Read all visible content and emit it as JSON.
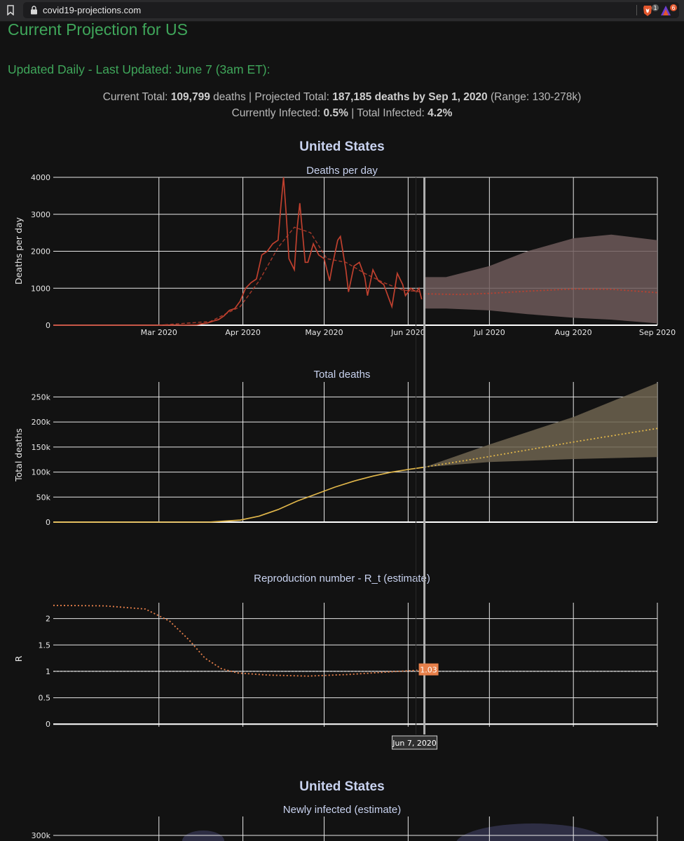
{
  "browser": {
    "url": "covid19-projections.com",
    "ext1_badge": "1",
    "ext2_badge": "6"
  },
  "page": {
    "title": "Current Projection for US",
    "updated": "Updated Daily - Last Updated: June 7 (3am ET):",
    "summary": {
      "current_total_label": "Current Total:",
      "current_total_value": "109,799",
      "current_total_unit": "deaths",
      "projected_label": "Projected Total:",
      "projected_value": "187,185 deaths by Sep 1, 2020",
      "range": "(Range: 130-278k)",
      "currently_infected_label": "Currently Infected:",
      "currently_infected_value": "0.5%",
      "total_infected_label": "Total Infected:",
      "total_infected_value": "4.2%",
      "sep": "|"
    },
    "figure_title": "United States",
    "figure_title_2": "United States",
    "current_date_marker": "2020-06-07",
    "hover_date_label": "Jun 7, 2020",
    "hover_value_label": "1.03"
  },
  "chart_data": [
    {
      "type": "line",
      "title": "Deaths per day",
      "xlabel": "",
      "ylabel": "Deaths per day",
      "x_ticks": [
        "Mar 2020",
        "Apr 2020",
        "May 2020",
        "Jun 2020",
        "Jul 2020",
        "Aug 2020",
        "Sep 2020"
      ],
      "ylim": [
        0,
        4000
      ],
      "y_ticks": [
        "0",
        "1000",
        "2000",
        "3000",
        "4000"
      ],
      "grid": true,
      "colors": {
        "actual": "#c0402e",
        "smoothed": "#c0402e",
        "band": "#6e5a5a",
        "projection": "#c0402e"
      },
      "series": [
        {
          "style": "solid",
          "x": [
            "2020-01-22",
            "2020-03-01",
            "2020-03-10",
            "2020-03-15",
            "2020-03-17",
            "2020-03-19",
            "2020-03-21",
            "2020-03-23",
            "2020-03-25",
            "2020-03-27",
            "2020-03-29",
            "2020-03-31",
            "2020-04-02",
            "2020-04-04",
            "2020-04-06",
            "2020-04-08",
            "2020-04-10",
            "2020-04-12",
            "2020-04-14",
            "2020-04-15",
            "2020-04-16",
            "2020-04-17",
            "2020-04-18",
            "2020-04-20",
            "2020-04-21",
            "2020-04-22",
            "2020-04-24",
            "2020-04-25",
            "2020-04-27",
            "2020-04-29",
            "2020-05-01",
            "2020-05-03",
            "2020-05-04",
            "2020-05-06",
            "2020-05-07",
            "2020-05-09",
            "2020-05-10",
            "2020-05-12",
            "2020-05-14",
            "2020-05-16",
            "2020-05-17",
            "2020-05-19",
            "2020-05-21",
            "2020-05-23",
            "2020-05-25",
            "2020-05-26",
            "2020-05-28",
            "2020-05-30",
            "2020-05-31",
            "2020-06-02",
            "2020-06-04",
            "2020-06-05",
            "2020-06-06"
          ],
          "values": [
            0,
            0,
            2,
            10,
            40,
            60,
            110,
            150,
            250,
            400,
            450,
            650,
            1000,
            1150,
            1250,
            1900,
            2000,
            2200,
            2300,
            3200,
            4000,
            3000,
            1800,
            1500,
            2600,
            3300,
            1700,
            1700,
            2200,
            1900,
            1800,
            1200,
            1600,
            2300,
            2400,
            1500,
            900,
            1600,
            1700,
            1300,
            800,
            1500,
            1200,
            1100,
            700,
            500,
            1400,
            1100,
            800,
            1000,
            900,
            1000,
            700
          ]
        },
        {
          "style": "dashed",
          "x": [
            "2020-03-01",
            "2020-03-20",
            "2020-03-31",
            "2020-04-07",
            "2020-04-14",
            "2020-04-20",
            "2020-04-26",
            "2020-05-02",
            "2020-05-09",
            "2020-05-16",
            "2020-05-23",
            "2020-05-30",
            "2020-06-06"
          ],
          "values": [
            0,
            100,
            500,
            1200,
            2100,
            2650,
            2500,
            1800,
            1700,
            1400,
            1150,
            950,
            900
          ]
        },
        {
          "style": "dotted",
          "x": [
            "2020-06-07",
            "2020-06-20",
            "2020-07-01",
            "2020-07-15",
            "2020-08-01",
            "2020-08-15",
            "2020-09-01"
          ],
          "values": [
            850,
            830,
            860,
            920,
            980,
            970,
            880
          ]
        }
      ],
      "band": {
        "x": [
          "2020-06-07",
          "2020-06-15",
          "2020-07-01",
          "2020-07-15",
          "2020-08-01",
          "2020-08-15",
          "2020-09-01"
        ],
        "upper": [
          1300,
          1300,
          1600,
          2000,
          2350,
          2450,
          2300
        ],
        "lower": [
          450,
          450,
          400,
          300,
          200,
          150,
          50
        ]
      }
    },
    {
      "type": "line",
      "title": "Total deaths",
      "xlabel": "",
      "ylabel": "Total deaths",
      "ylim": [
        0,
        280000
      ],
      "y_ticks": [
        "0",
        "50k",
        "100k",
        "150k",
        "200k",
        "250k"
      ],
      "grid": true,
      "colors": {
        "actual": "#e0b64a",
        "band": "#6e6450",
        "projection": "#e0b64a"
      },
      "series": [
        {
          "style": "solid",
          "x": [
            "2020-01-22",
            "2020-03-20",
            "2020-03-31",
            "2020-04-07",
            "2020-04-14",
            "2020-04-21",
            "2020-04-28",
            "2020-05-05",
            "2020-05-12",
            "2020-05-19",
            "2020-05-26",
            "2020-06-02",
            "2020-06-07"
          ],
          "values": [
            0,
            200,
            4000,
            12000,
            25000,
            42000,
            56000,
            70000,
            82000,
            92000,
            100000,
            106000,
            109799
          ]
        },
        {
          "style": "dotted",
          "x": [
            "2020-06-07",
            "2020-07-01",
            "2020-08-01",
            "2020-09-01"
          ],
          "values": [
            109799,
            131000,
            160000,
            187185
          ]
        }
      ],
      "band": {
        "x": [
          "2020-06-07",
          "2020-07-01",
          "2020-08-01",
          "2020-09-01"
        ],
        "upper": [
          109799,
          155000,
          210000,
          278000
        ],
        "lower": [
          109799,
          120000,
          126000,
          130000
        ]
      }
    },
    {
      "type": "line",
      "title": "Reproduction number - R_t (estimate)",
      "xlabel": "",
      "ylabel": "R",
      "ylim": [
        -0.05,
        2.3
      ],
      "y_ticks": [
        "0",
        "0.5",
        "1",
        "1.5",
        "2"
      ],
      "grid": true,
      "colors": {
        "line": "#e8804a"
      },
      "reference_line": 1,
      "series": [
        {
          "style": "dotted",
          "x": [
            "2020-01-22",
            "2020-02-10",
            "2020-02-25",
            "2020-03-05",
            "2020-03-12",
            "2020-03-18",
            "2020-03-24",
            "2020-03-30",
            "2020-04-10",
            "2020-04-25",
            "2020-05-10",
            "2020-05-25",
            "2020-06-07"
          ],
          "values": [
            2.25,
            2.24,
            2.18,
            1.95,
            1.6,
            1.25,
            1.05,
            0.97,
            0.93,
            0.91,
            0.94,
            0.99,
            1.03
          ]
        }
      ]
    },
    {
      "type": "line",
      "title": "Newly infected (estimate)",
      "xlabel": "",
      "ylabel": "",
      "y_ticks": [
        "300k"
      ],
      "grid": true
    }
  ]
}
